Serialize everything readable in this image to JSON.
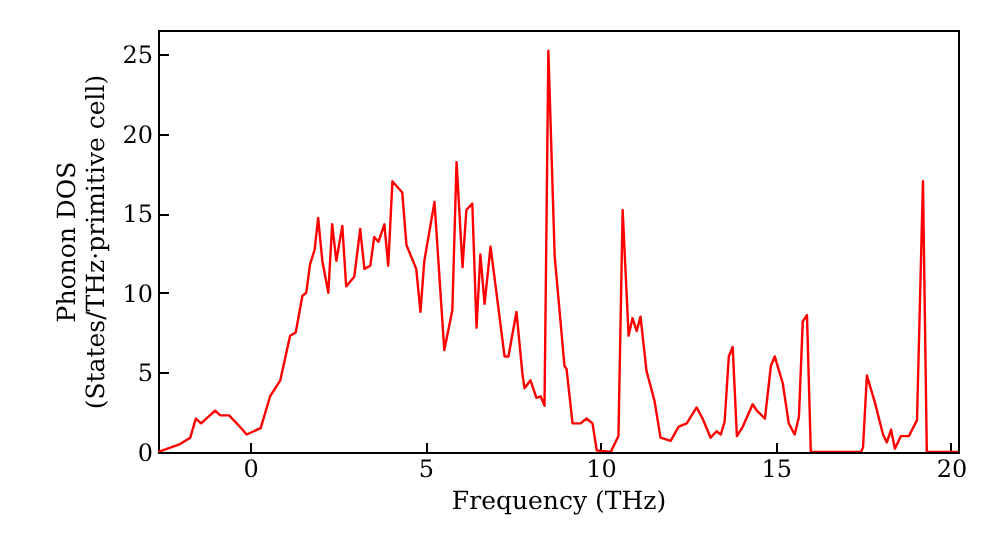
{
  "chart_data": {
    "type": "line",
    "xlabel": "Frequency (THz)",
    "ylabel": "Phonon DOS\n(States/THz·primitive cell)",
    "x": [
      -2.63,
      -2.0,
      -1.71,
      -1.55,
      -1.4,
      -1.0,
      -0.85,
      -0.6,
      -0.3,
      -0.1,
      0.3,
      0.57,
      0.86,
      1.14,
      1.3,
      1.49,
      1.6,
      1.71,
      1.84,
      1.94,
      2.06,
      2.23,
      2.34,
      2.46,
      2.63,
      2.74,
      2.97,
      3.14,
      3.26,
      3.43,
      3.54,
      3.66,
      3.83,
      3.94,
      4.06,
      4.34,
      4.46,
      4.74,
      4.86,
      4.97,
      5.26,
      5.54,
      5.77,
      5.89,
      6.06,
      6.17,
      6.34,
      6.46,
      6.57,
      6.69,
      6.86,
      7.26,
      7.37,
      7.6,
      7.77,
      7.83,
      8.0,
      8.17,
      8.29,
      8.4,
      8.51,
      8.69,
      8.97,
      9.03,
      9.2,
      9.43,
      9.6,
      9.77,
      9.89,
      10.29,
      10.51,
      10.63,
      10.8,
      10.91,
      11.03,
      11.14,
      11.31,
      11.54,
      11.71,
      12.0,
      12.23,
      12.46,
      12.74,
      12.91,
      13.14,
      13.31,
      13.43,
      13.54,
      13.66,
      13.77,
      13.89,
      14.06,
      14.34,
      14.46,
      14.69,
      14.86,
      14.97,
      15.2,
      15.37,
      15.54,
      15.66,
      15.77,
      15.89,
      16.0,
      17.43,
      17.49,
      17.6,
      17.83,
      18.06,
      18.17,
      18.29,
      18.4,
      18.57,
      18.8,
      19.03,
      19.2,
      19.31,
      20.2
    ],
    "series": [
      {
        "color": "#ff0000",
        "values": [
          0,
          0.5,
          0.9,
          2.1,
          1.8,
          2.6,
          2.3,
          2.3,
          1.6,
          1.1,
          1.5,
          3.5,
          4.5,
          7.3,
          7.5,
          9.8,
          10.0,
          11.8,
          12.7,
          14.7,
          12,
          10.0,
          14.3,
          12,
          14.2,
          10.4,
          11,
          14,
          11.5,
          11.7,
          13.5,
          13.2,
          14.3,
          11.7,
          17,
          16.3,
          13,
          11.5,
          8.8,
          12,
          15.7,
          6.4,
          8.9,
          18.2,
          11.6,
          15.2,
          15.6,
          7.8,
          12.4,
          9.3,
          12.9,
          6.0,
          6.0,
          8.8,
          4.9,
          4.0,
          4.5,
          3.4,
          3.5,
          2.9,
          25.2,
          12.3,
          5.4,
          5.2,
          1.8,
          1.8,
          2.1,
          1.8,
          0.1,
          0,
          1.0,
          15.2,
          7.3,
          8.4,
          7.6,
          8.5,
          5.1,
          3.2,
          0.9,
          0.7,
          1.6,
          1.8,
          2.8,
          2.1,
          0.9,
          1.3,
          1.1,
          1.9,
          6.0,
          6.6,
          1.0,
          1.6,
          3.0,
          2.6,
          2.1,
          5.4,
          6.0,
          4.3,
          1.8,
          1.1,
          2.2,
          8.2,
          8.6,
          0,
          0,
          0.3,
          4.8,
          3.1,
          1.1,
          0.6,
          1.4,
          0.2,
          1.0,
          1.0,
          2.0,
          17.0,
          0,
          0
        ]
      }
    ],
    "xlim": [
      -2.63,
      20.2
    ],
    "xticks": [
      0,
      5,
      10,
      15,
      20
    ],
    "ylim": [
      0,
      26.5
    ],
    "yticks": [
      0,
      5,
      10,
      15,
      20,
      25
    ],
    "grid": false
  }
}
